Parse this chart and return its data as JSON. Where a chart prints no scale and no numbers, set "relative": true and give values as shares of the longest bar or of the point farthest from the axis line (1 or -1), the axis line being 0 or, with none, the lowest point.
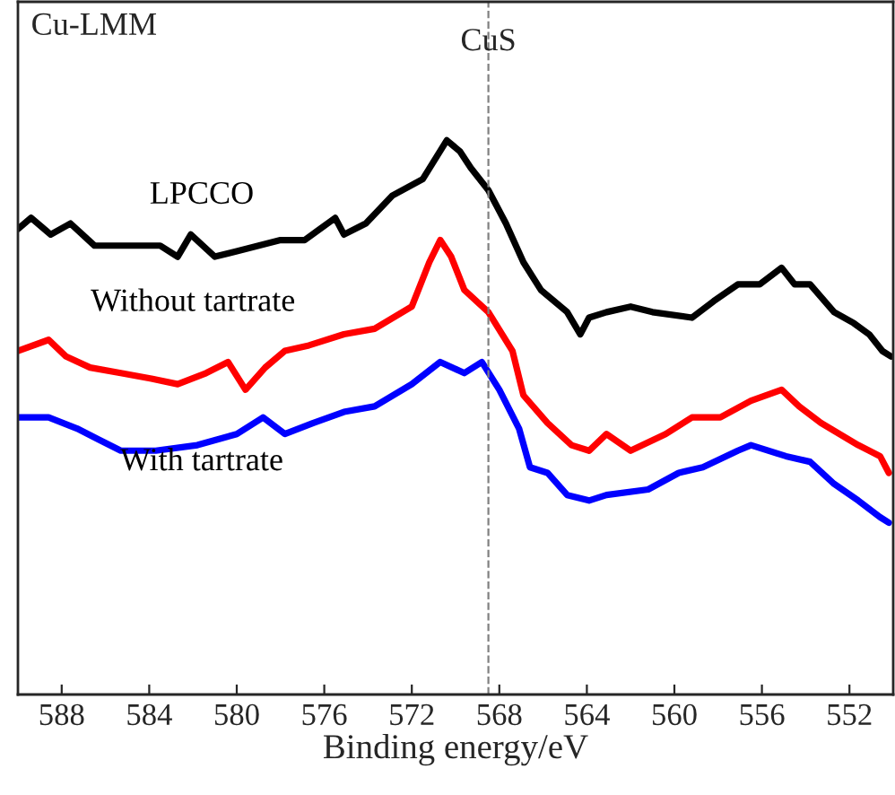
{
  "chart_data": {
    "type": "line",
    "relative": true,
    "xlabel": "Binding energy/eV",
    "annotations": [
      "Cu-LMM"
    ],
    "xlim": [
      590,
      550
    ],
    "xticks": [
      588,
      584,
      580,
      576,
      572,
      568,
      564,
      560,
      556,
      552
    ],
    "ref_lines": [
      {
        "axis": "x",
        "value": 568.5,
        "label": "CuS",
        "color": "#808080",
        "line_style": "dashed"
      }
    ],
    "grid": false,
    "legend": false,
    "line_style": "solid",
    "marker": "none",
    "series": [
      {
        "name": "LPCCO",
        "color": "#000000",
        "x": [
          590.0,
          589.4,
          588.5,
          587.6,
          586.5,
          585.3,
          584.5,
          583.5,
          582.7,
          582.1,
          581.0,
          580.0,
          579.0,
          578.0,
          576.9,
          575.5,
          575.1,
          574.1,
          572.9,
          571.5,
          570.4,
          569.8,
          569.3,
          568.5,
          567.7,
          566.9,
          566.1,
          564.9,
          564.3,
          563.9,
          563.1,
          562.0,
          561.0,
          559.2,
          558.2,
          557.1,
          556.1,
          555.1,
          554.5,
          553.8,
          552.7,
          551.8,
          551.1,
          550.5,
          550.1
        ],
        "values": [
          0.84,
          0.86,
          0.83,
          0.85,
          0.81,
          0.81,
          0.81,
          0.81,
          0.79,
          0.83,
          0.79,
          0.8,
          0.81,
          0.82,
          0.82,
          0.86,
          0.83,
          0.85,
          0.9,
          0.93,
          1.0,
          0.98,
          0.95,
          0.91,
          0.85,
          0.78,
          0.73,
          0.69,
          0.65,
          0.68,
          0.69,
          0.7,
          0.69,
          0.68,
          0.71,
          0.74,
          0.74,
          0.77,
          0.74,
          0.74,
          0.69,
          0.67,
          0.65,
          0.62,
          0.61
        ]
      },
      {
        "name": "Without tartrate",
        "color": "#ff0000",
        "x": [
          590.0,
          588.6,
          587.8,
          586.7,
          585.3,
          583.9,
          582.7,
          581.4,
          580.4,
          579.6,
          578.7,
          577.8,
          576.7,
          575.1,
          573.7,
          572.0,
          571.2,
          570.7,
          570.2,
          569.6,
          568.5,
          567.4,
          566.9,
          565.8,
          564.7,
          563.9,
          563.1,
          562.0,
          560.4,
          559.2,
          557.9,
          556.5,
          555.1,
          554.3,
          553.3,
          551.6,
          550.6,
          550.2
        ],
        "values": [
          0.62,
          0.64,
          0.61,
          0.59,
          0.58,
          0.57,
          0.56,
          0.58,
          0.6,
          0.55,
          0.59,
          0.62,
          0.63,
          0.65,
          0.66,
          0.7,
          0.78,
          0.82,
          0.79,
          0.73,
          0.69,
          0.62,
          0.54,
          0.49,
          0.45,
          0.44,
          0.47,
          0.44,
          0.47,
          0.5,
          0.5,
          0.53,
          0.55,
          0.52,
          0.49,
          0.45,
          0.43,
          0.4
        ]
      },
      {
        "name": "With tartrate",
        "color": "#0000ff",
        "x": [
          590.0,
          588.6,
          587.3,
          586.3,
          585.3,
          583.7,
          581.8,
          580.0,
          578.8,
          577.8,
          576.5,
          575.1,
          573.7,
          572.0,
          570.7,
          569.6,
          568.8,
          568.0,
          567.1,
          566.6,
          565.8,
          564.9,
          563.9,
          563.1,
          561.2,
          559.8,
          558.7,
          557.1,
          556.5,
          554.9,
          553.8,
          552.7,
          551.6,
          550.6,
          550.2
        ],
        "values": [
          0.5,
          0.5,
          0.48,
          0.46,
          0.44,
          0.44,
          0.45,
          0.47,
          0.5,
          0.47,
          0.49,
          0.51,
          0.52,
          0.56,
          0.6,
          0.58,
          0.6,
          0.55,
          0.48,
          0.41,
          0.4,
          0.36,
          0.35,
          0.36,
          0.37,
          0.4,
          0.41,
          0.44,
          0.45,
          0.43,
          0.42,
          0.38,
          0.35,
          0.32,
          0.31
        ]
      }
    ]
  }
}
